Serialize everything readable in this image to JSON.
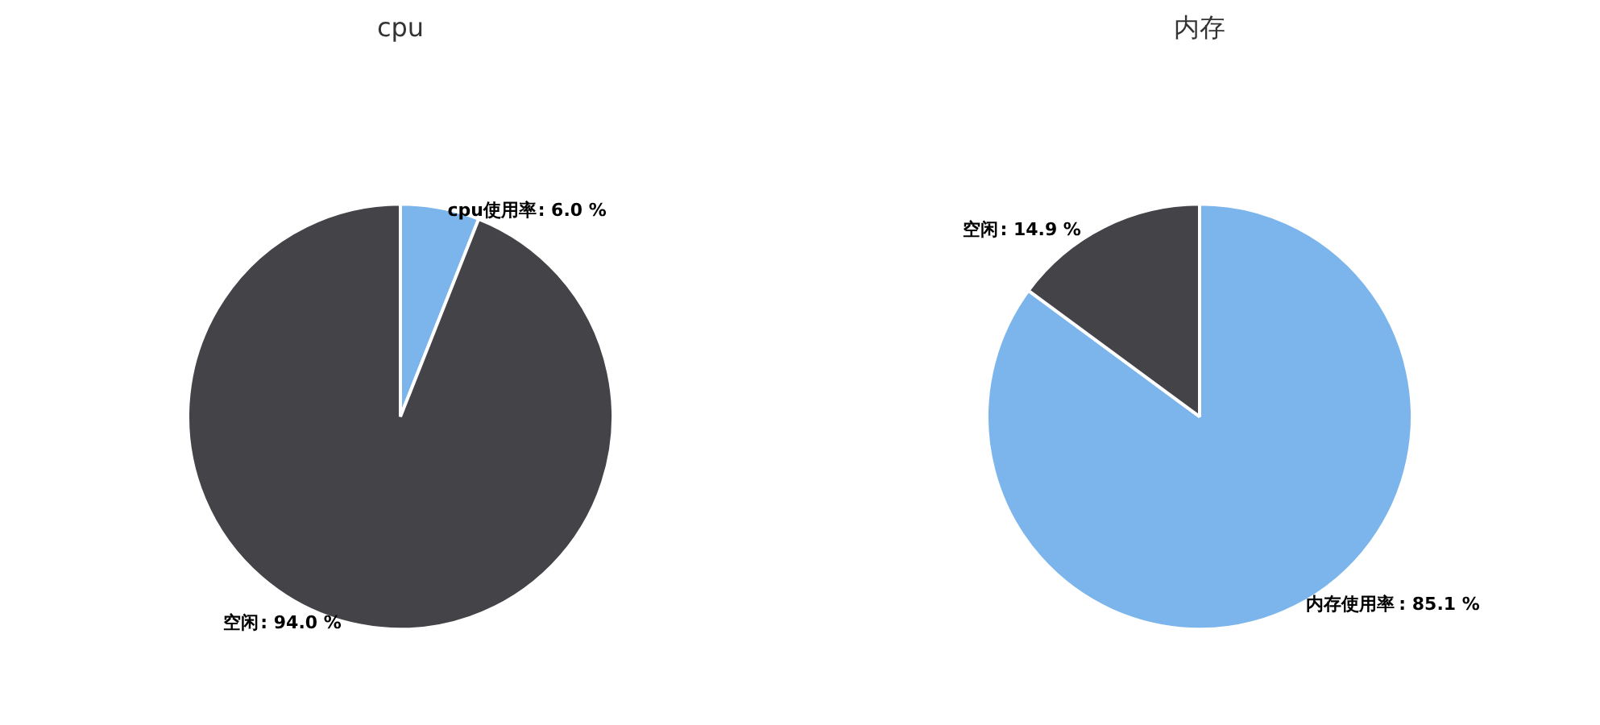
{
  "chart_data": [
    {
      "type": "pie",
      "title": "cpu",
      "categories": [
        "cpu使用率",
        "空闲"
      ],
      "values": [
        6.0,
        94.0
      ],
      "colors": [
        "#7cb5ec",
        "#434348"
      ],
      "value_labels": [
        ": 6.0 %",
        ": 94.0 %"
      ],
      "legend": false
    },
    {
      "type": "pie",
      "title": "内存",
      "categories": [
        "内存使用率",
        "空闲"
      ],
      "values": [
        85.1,
        14.9
      ],
      "colors": [
        "#7cb5ec",
        "#434348"
      ],
      "value_labels": [
        ": 85.1 %",
        ": 14.9 %"
      ],
      "legend": false
    }
  ]
}
